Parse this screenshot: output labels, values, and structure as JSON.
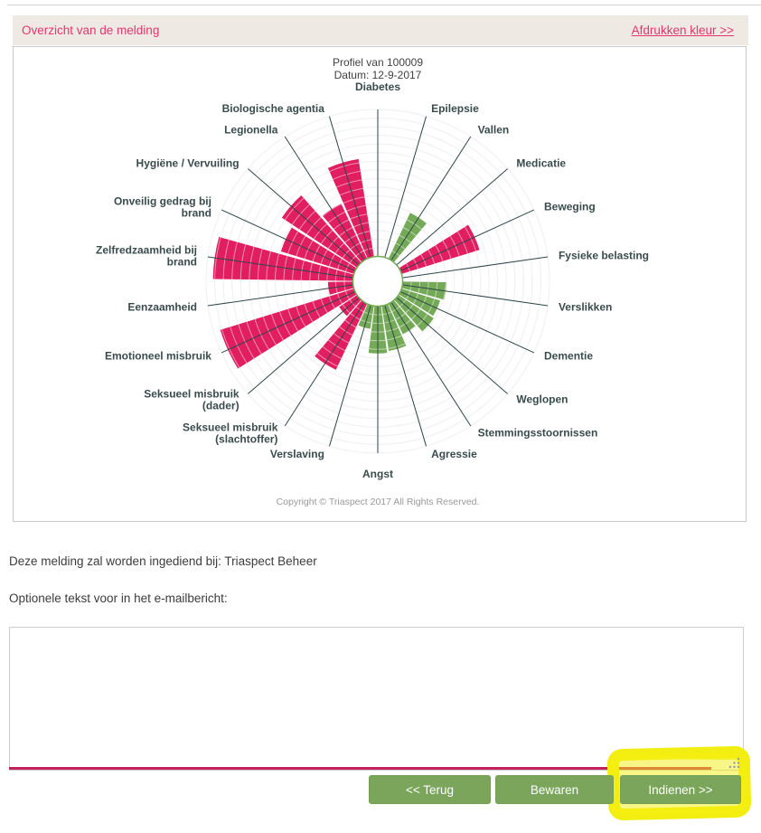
{
  "header": {
    "title": "Overzicht van de melding",
    "print_link": "Afdrukken kleur >>",
    "text_color": "#e5356f",
    "bg_color": "#eeeae3"
  },
  "chart_data": {
    "type": "polar-bar-rose",
    "title": "Profiel van 100009",
    "subtitle": "Datum: 12-9-2017",
    "copyright": "Copyright © Triaspect 2017 All Rights Reserved.",
    "value_scale": "fraction of outer radius (0-1), hole at 0.14",
    "grid": true,
    "colors": {
      "risk": "#e01e60",
      "protective": "#74a958",
      "axis": "#2f4748",
      "grid_ring": "#e3e3e3",
      "label": "#3a4b4c",
      "hole_border": "#74a958"
    },
    "categories": [
      {
        "label": "Diabetes",
        "lines": [
          "Diabetes"
        ],
        "value": 0,
        "color": "none"
      },
      {
        "label": "Epilepsie",
        "lines": [
          "Epilepsie"
        ],
        "value": 0,
        "color": "none"
      },
      {
        "label": "Vallen",
        "lines": [
          "Vallen"
        ],
        "value": 0.44,
        "color": "green"
      },
      {
        "label": "Medicatie",
        "lines": [
          "Medicatie"
        ],
        "value": 0,
        "color": "none"
      },
      {
        "label": "Beweging",
        "lines": [
          "Beweging"
        ],
        "value": 0.62,
        "color": "pink"
      },
      {
        "label": "Fysieke belasting",
        "lines": [
          "Fysieke belasting"
        ],
        "value": 0,
        "color": "none"
      },
      {
        "label": "Verslikken",
        "lines": [
          "Verslikken"
        ],
        "value": 0.4,
        "color": "green"
      },
      {
        "label": "Dementie",
        "lines": [
          "Dementie"
        ],
        "value": 0.38,
        "color": "green"
      },
      {
        "label": "Weglopen",
        "lines": [
          "Weglopen"
        ],
        "value": 0.39,
        "color": "green"
      },
      {
        "label": "Stemmingsstoornissen",
        "lines": [
          "Stemmingsstoornissen"
        ],
        "value": 0.34,
        "color": "green"
      },
      {
        "label": "Agressie",
        "lines": [
          "Agressie"
        ],
        "value": 0.41,
        "color": "green"
      },
      {
        "label": "Angst",
        "lines": [
          "Angst"
        ],
        "value": 0.42,
        "color": "green"
      },
      {
        "label": "Verslaving",
        "lines": [
          "Verslaving"
        ],
        "value": 0.28,
        "color": "green"
      },
      {
        "label": "Seksueel misbruik (slachtoffer)",
        "lines": [
          "Seksueel misbruik",
          "(slachtoffer)"
        ],
        "value": 0.57,
        "color": "pink"
      },
      {
        "label": "Seksueel misbruik (dader)",
        "lines": [
          "Seksueel misbruik",
          "(dader)"
        ],
        "value": 0.27,
        "color": "pink"
      },
      {
        "label": "Emotioneel misbruik",
        "lines": [
          "Emotioneel misbruik"
        ],
        "value": 0.96,
        "color": "pink"
      },
      {
        "label": "Eenzaamheid",
        "lines": [
          "Eenzaamheid"
        ],
        "value": 0.29,
        "color": "pink"
      },
      {
        "label": "Zelfredzaamheid bij brand",
        "lines": [
          "Zelfredzaamheid bij",
          "brand"
        ],
        "value": 0.96,
        "color": "pink"
      },
      {
        "label": "Onveilig gedrag bij brand",
        "lines": [
          "Onveilig gedrag bij",
          "brand"
        ],
        "value": 0.59,
        "color": "pink"
      },
      {
        "label": "Hygiëne / Vervuiling",
        "lines": [
          "Hygiëne / Vervuiling"
        ],
        "value": 0.67,
        "color": "pink"
      },
      {
        "label": "Legionella",
        "lines": [
          "Legionella"
        ],
        "value": 0.5,
        "color": "pink"
      },
      {
        "label": "Biologische agentia",
        "lines": [
          "Biologische agentia"
        ],
        "value": 0.72,
        "color": "pink"
      }
    ]
  },
  "main": {
    "submit_info": "Deze melding zal worden ingediend bij: Triaspect Beheer",
    "email_label": "Optionele tekst voor in het e-mailbericht:",
    "textarea": {
      "value": "",
      "placeholder": ""
    }
  },
  "buttons": [
    {
      "label": "<< Terug"
    },
    {
      "label": "Bewaren"
    },
    {
      "label": "Indienen >>"
    }
  ],
  "annotation": {
    "type": "highlighter-scribble",
    "target": "Indienen >>",
    "color": "#f3ee11"
  }
}
